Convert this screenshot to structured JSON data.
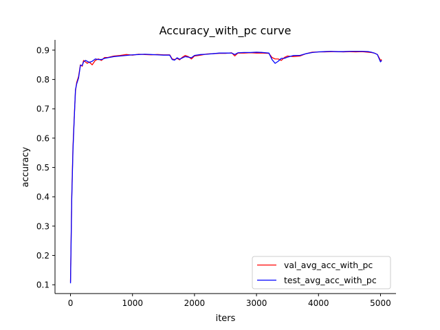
{
  "chart_data": {
    "type": "line",
    "title": "Accuracy_with_pc curve",
    "xlabel": "iters",
    "ylabel": "accuracy",
    "xlim": [
      -250,
      5250
    ],
    "ylim": [
      0.07,
      0.935
    ],
    "x_ticks": [
      0,
      1000,
      2000,
      3000,
      4000,
      5000
    ],
    "y_ticks": [
      0.1,
      0.2,
      0.3,
      0.4,
      0.5,
      0.6,
      0.7,
      0.8,
      0.9
    ],
    "grid": false,
    "legend_position": "lower-right",
    "series": [
      {
        "name": "val_avg_acc_with_pc",
        "color": "#ff0000",
        "x": [
          0,
          20,
          40,
          60,
          80,
          100,
          130,
          160,
          190,
          210,
          240,
          270,
          300,
          350,
          400,
          450,
          500,
          550,
          600,
          700,
          800,
          900,
          1000,
          1100,
          1200,
          1300,
          1400,
          1500,
          1600,
          1640,
          1680,
          1720,
          1760,
          1800,
          1850,
          1900,
          1950,
          2000,
          2100,
          2200,
          2300,
          2400,
          2500,
          2600,
          2650,
          2700,
          2800,
          2900,
          3000,
          3100,
          3200,
          3250,
          3300,
          3350,
          3400,
          3450,
          3500,
          3600,
          3700,
          3800,
          3900,
          4000,
          4100,
          4200,
          4300,
          4400,
          4500,
          4600,
          4700,
          4800,
          4850,
          4900,
          4950,
          5000,
          5020
        ],
        "y": [
          0.11,
          0.4,
          0.57,
          0.67,
          0.76,
          0.79,
          0.81,
          0.85,
          0.845,
          0.865,
          0.86,
          0.855,
          0.86,
          0.85,
          0.865,
          0.87,
          0.865,
          0.875,
          0.875,
          0.88,
          0.882,
          0.885,
          0.883,
          0.886,
          0.885,
          0.884,
          0.885,
          0.884,
          0.884,
          0.87,
          0.868,
          0.872,
          0.867,
          0.875,
          0.882,
          0.878,
          0.87,
          0.88,
          0.883,
          0.887,
          0.888,
          0.889,
          0.889,
          0.891,
          0.88,
          0.89,
          0.89,
          0.891,
          0.89,
          0.89,
          0.889,
          0.875,
          0.87,
          0.87,
          0.865,
          0.875,
          0.88,
          0.878,
          0.88,
          0.888,
          0.893,
          0.894,
          0.894,
          0.895,
          0.895,
          0.894,
          0.895,
          0.894,
          0.895,
          0.893,
          0.892,
          0.89,
          0.885,
          0.865,
          0.868
        ]
      },
      {
        "name": "test_avg_acc_with_pc",
        "color": "#0000ff",
        "x": [
          0,
          20,
          40,
          60,
          80,
          100,
          130,
          160,
          190,
          210,
          240,
          270,
          300,
          350,
          400,
          450,
          500,
          550,
          600,
          700,
          800,
          900,
          1000,
          1100,
          1200,
          1300,
          1400,
          1500,
          1600,
          1640,
          1680,
          1720,
          1760,
          1800,
          1850,
          1900,
          1950,
          2000,
          2100,
          2200,
          2300,
          2400,
          2500,
          2600,
          2650,
          2700,
          2800,
          2900,
          3000,
          3100,
          3200,
          3250,
          3300,
          3350,
          3400,
          3450,
          3500,
          3600,
          3700,
          3800,
          3900,
          4000,
          4100,
          4200,
          4300,
          4400,
          4500,
          4600,
          4700,
          4800,
          4850,
          4900,
          4950,
          5000,
          5020
        ],
        "y": [
          0.105,
          0.39,
          0.56,
          0.665,
          0.765,
          0.785,
          0.805,
          0.848,
          0.848,
          0.86,
          0.865,
          0.862,
          0.858,
          0.862,
          0.87,
          0.868,
          0.868,
          0.872,
          0.874,
          0.878,
          0.88,
          0.882,
          0.884,
          0.885,
          0.886,
          0.885,
          0.884,
          0.883,
          0.883,
          0.868,
          0.866,
          0.874,
          0.869,
          0.873,
          0.878,
          0.876,
          0.874,
          0.882,
          0.885,
          0.886,
          0.888,
          0.89,
          0.89,
          0.89,
          0.885,
          0.891,
          0.892,
          0.892,
          0.893,
          0.892,
          0.89,
          0.868,
          0.855,
          0.862,
          0.872,
          0.872,
          0.876,
          0.882,
          0.882,
          0.888,
          0.892,
          0.894,
          0.895,
          0.896,
          0.895,
          0.895,
          0.896,
          0.896,
          0.896,
          0.895,
          0.893,
          0.89,
          0.885,
          0.86,
          0.865
        ]
      }
    ]
  }
}
